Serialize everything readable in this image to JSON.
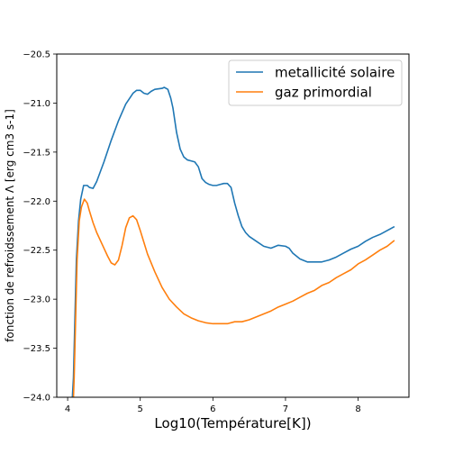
{
  "chart_data": {
    "type": "line",
    "title": "",
    "xlabel": "Log10(Température[K])",
    "ylabel": "fonction de refroidssement Λ [erg cm3 s-1]",
    "xlim": [
      3.85,
      8.7
    ],
    "ylim": [
      -24.0,
      -20.5
    ],
    "xticks": [
      4,
      5,
      6,
      7,
      8
    ],
    "xtick_labels": [
      "4",
      "5",
      "6",
      "7",
      "8"
    ],
    "yticks": [
      -24.0,
      -23.5,
      -23.0,
      -22.5,
      -22.0,
      -21.5,
      -21.0,
      -20.5
    ],
    "ytick_labels": [
      "−24.0",
      "−23.5",
      "−23.0",
      "−22.5",
      "−22.0",
      "−21.5",
      "−21.0",
      "−20.5"
    ],
    "grid": false,
    "legend_position": "top-right",
    "series": [
      {
        "name": "metallicité solaire",
        "color": "#1f77b4",
        "points": [
          [
            4.05,
            -24.2
          ],
          [
            4.08,
            -23.8
          ],
          [
            4.1,
            -23.2
          ],
          [
            4.12,
            -22.6
          ],
          [
            4.15,
            -22.2
          ],
          [
            4.18,
            -21.98
          ],
          [
            4.22,
            -21.84
          ],
          [
            4.27,
            -21.84
          ],
          [
            4.3,
            -21.86
          ],
          [
            4.35,
            -21.87
          ],
          [
            4.4,
            -21.8
          ],
          [
            4.5,
            -21.6
          ],
          [
            4.6,
            -21.38
          ],
          [
            4.7,
            -21.18
          ],
          [
            4.8,
            -21.01
          ],
          [
            4.9,
            -20.9
          ],
          [
            4.95,
            -20.87
          ],
          [
            5.0,
            -20.87
          ],
          [
            5.05,
            -20.9
          ],
          [
            5.1,
            -20.91
          ],
          [
            5.15,
            -20.88
          ],
          [
            5.2,
            -20.86
          ],
          [
            5.3,
            -20.85
          ],
          [
            5.33,
            -20.84
          ],
          [
            5.38,
            -20.86
          ],
          [
            5.42,
            -20.95
          ],
          [
            5.45,
            -21.05
          ],
          [
            5.48,
            -21.2
          ],
          [
            5.5,
            -21.3
          ],
          [
            5.55,
            -21.47
          ],
          [
            5.6,
            -21.55
          ],
          [
            5.65,
            -21.58
          ],
          [
            5.7,
            -21.59
          ],
          [
            5.75,
            -21.6
          ],
          [
            5.8,
            -21.65
          ],
          [
            5.85,
            -21.77
          ],
          [
            5.9,
            -21.81
          ],
          [
            5.95,
            -21.83
          ],
          [
            6.0,
            -21.84
          ],
          [
            6.05,
            -21.84
          ],
          [
            6.1,
            -21.83
          ],
          [
            6.15,
            -21.82
          ],
          [
            6.2,
            -21.82
          ],
          [
            6.25,
            -21.86
          ],
          [
            6.3,
            -22.02
          ],
          [
            6.35,
            -22.15
          ],
          [
            6.4,
            -22.26
          ],
          [
            6.45,
            -22.32
          ],
          [
            6.5,
            -22.36
          ],
          [
            6.6,
            -22.41
          ],
          [
            6.7,
            -22.46
          ],
          [
            6.8,
            -22.48
          ],
          [
            6.9,
            -22.45
          ],
          [
            7.0,
            -22.46
          ],
          [
            7.05,
            -22.48
          ],
          [
            7.1,
            -22.53
          ],
          [
            7.2,
            -22.59
          ],
          [
            7.3,
            -22.62
          ],
          [
            7.4,
            -22.62
          ],
          [
            7.5,
            -22.62
          ],
          [
            7.6,
            -22.6
          ],
          [
            7.7,
            -22.57
          ],
          [
            7.8,
            -22.53
          ],
          [
            7.9,
            -22.49
          ],
          [
            8.0,
            -22.46
          ],
          [
            8.1,
            -22.41
          ],
          [
            8.2,
            -22.37
          ],
          [
            8.3,
            -22.34
          ],
          [
            8.4,
            -22.3
          ],
          [
            8.5,
            -22.26
          ]
        ]
      },
      {
        "name": "gaz primordial",
        "color": "#ff7f0e",
        "points": [
          [
            4.07,
            -24.2
          ],
          [
            4.09,
            -23.8
          ],
          [
            4.11,
            -23.2
          ],
          [
            4.13,
            -22.6
          ],
          [
            4.16,
            -22.2
          ],
          [
            4.19,
            -22.06
          ],
          [
            4.23,
            -21.98
          ],
          [
            4.27,
            -22.02
          ],
          [
            4.3,
            -22.1
          ],
          [
            4.35,
            -22.22
          ],
          [
            4.4,
            -22.32
          ],
          [
            4.5,
            -22.48
          ],
          [
            4.55,
            -22.56
          ],
          [
            4.6,
            -22.63
          ],
          [
            4.65,
            -22.65
          ],
          [
            4.7,
            -22.6
          ],
          [
            4.75,
            -22.45
          ],
          [
            4.8,
            -22.27
          ],
          [
            4.85,
            -22.17
          ],
          [
            4.9,
            -22.15
          ],
          [
            4.95,
            -22.19
          ],
          [
            5.0,
            -22.3
          ],
          [
            5.05,
            -22.42
          ],
          [
            5.1,
            -22.54
          ],
          [
            5.2,
            -22.72
          ],
          [
            5.3,
            -22.88
          ],
          [
            5.4,
            -23.0
          ],
          [
            5.5,
            -23.08
          ],
          [
            5.6,
            -23.15
          ],
          [
            5.7,
            -23.19
          ],
          [
            5.8,
            -23.22
          ],
          [
            5.9,
            -23.24
          ],
          [
            6.0,
            -23.25
          ],
          [
            6.1,
            -23.25
          ],
          [
            6.2,
            -23.25
          ],
          [
            6.3,
            -23.23
          ],
          [
            6.4,
            -23.23
          ],
          [
            6.5,
            -23.21
          ],
          [
            6.6,
            -23.18
          ],
          [
            6.7,
            -23.15
          ],
          [
            6.8,
            -23.12
          ],
          [
            6.9,
            -23.08
          ],
          [
            7.0,
            -23.05
          ],
          [
            7.1,
            -23.02
          ],
          [
            7.2,
            -22.98
          ],
          [
            7.3,
            -22.94
          ],
          [
            7.4,
            -22.91
          ],
          [
            7.5,
            -22.86
          ],
          [
            7.6,
            -22.83
          ],
          [
            7.7,
            -22.78
          ],
          [
            7.8,
            -22.74
          ],
          [
            7.9,
            -22.7
          ],
          [
            8.0,
            -22.64
          ],
          [
            8.1,
            -22.6
          ],
          [
            8.2,
            -22.55
          ],
          [
            8.3,
            -22.5
          ],
          [
            8.4,
            -22.46
          ],
          [
            8.5,
            -22.4
          ]
        ]
      }
    ]
  }
}
